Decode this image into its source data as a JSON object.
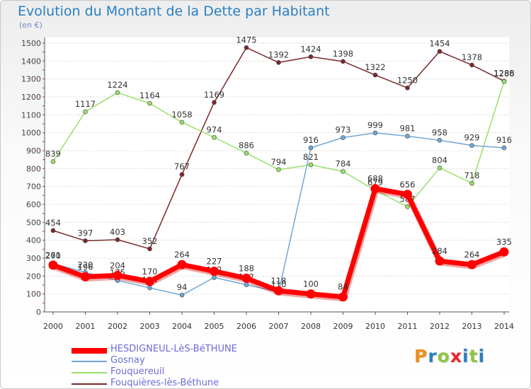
{
  "title": "Evolution du Montant de la Dette par Habitant",
  "subtitle": "(en €)",
  "logo": {
    "text": "Proxiti",
    "letter_colors": [
      "#f08c1c",
      "#2a7fbf",
      "#8cc63f",
      "#e8262e",
      "#2a7fbf",
      "#8cc63f",
      "#2a7fbf"
    ]
  },
  "chart_data": {
    "type": "line",
    "x": [
      "2000",
      "2001",
      "2002",
      "2003",
      "2004",
      "2005",
      "2006",
      "2007",
      "2008",
      "2009",
      "2010",
      "2011",
      "2012",
      "2013",
      "2014"
    ],
    "ylim": [
      0,
      1500
    ],
    "yticks": [
      "0",
      "100",
      "200",
      "300",
      "400",
      "500",
      "600",
      "700",
      "800",
      "900",
      "1000",
      "1100",
      "1200",
      "1300",
      "1400",
      "1500"
    ],
    "grid": "horizontal",
    "legend_position": "bottom-left",
    "series": [
      {
        "name": "Fouquières-lès-Béthune",
        "color": "#7a2a2a",
        "values": [
          454,
          397,
          403,
          352,
          767,
          1169,
          1475,
          1392,
          1424,
          1398,
          1322,
          1250,
          1454,
          1378,
          1288
        ]
      },
      {
        "name": "Fouquereuil",
        "color": "#99e06a",
        "values": [
          839,
          1117,
          1224,
          1164,
          1058,
          974,
          886,
          794,
          821,
          784,
          679,
          587,
          804,
          718,
          1286
        ]
      },
      {
        "name": "Gosnay",
        "color": "#6fa7d8",
        "values": [
          270,
          220,
          175,
          134,
          94,
          192,
          152,
          110,
          916,
          973,
          999,
          981,
          958,
          929,
          916
        ]
      },
      {
        "name": "HESDIGNEUL-LèS-BéTHUNE",
        "color": "#ff0000",
        "values": [
          261,
          196,
          204,
          170,
          264,
          227,
          188,
          118,
          100,
          84,
          688,
          656,
          284,
          264,
          335
        ]
      }
    ]
  }
}
